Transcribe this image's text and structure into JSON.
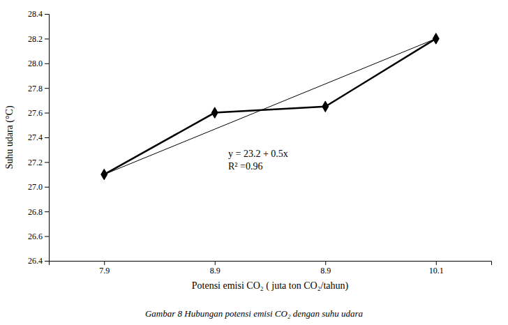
{
  "chart_data": {
    "type": "line",
    "categories": [
      "7.9",
      "8.9",
      "8.9",
      "10.1"
    ],
    "series": [
      {
        "values": [
          27.1,
          27.6,
          27.65,
          28.2
        ],
        "color": "black",
        "marker": "diamond",
        "line_style": "solid"
      }
    ],
    "regression_line": {
      "values": [
        27.1,
        28.2
      ],
      "color": "black",
      "line_style": "solid"
    },
    "x_label": "Potensi emisi CO₂ ( juta ton CO₂/tahun)",
    "y_label": "Suhu udara (°C)",
    "ylim": [
      26.4,
      28.4
    ],
    "yticks": [
      26.4,
      26.6,
      26.8,
      {
        "value": 27,
        "label": "27.0"
      },
      27.2,
      27.4,
      27.6,
      27.8,
      {
        "value": 28,
        "label": "28.0"
      },
      28.2,
      28.4
    ],
    "annotations": [
      "y = 23.2 + 0.5x",
      "R² =0.96"
    ],
    "caption": "Gambar 8 Hubungan potensi emisi CO₂ dengan suhu udara",
    "grid": false
  }
}
